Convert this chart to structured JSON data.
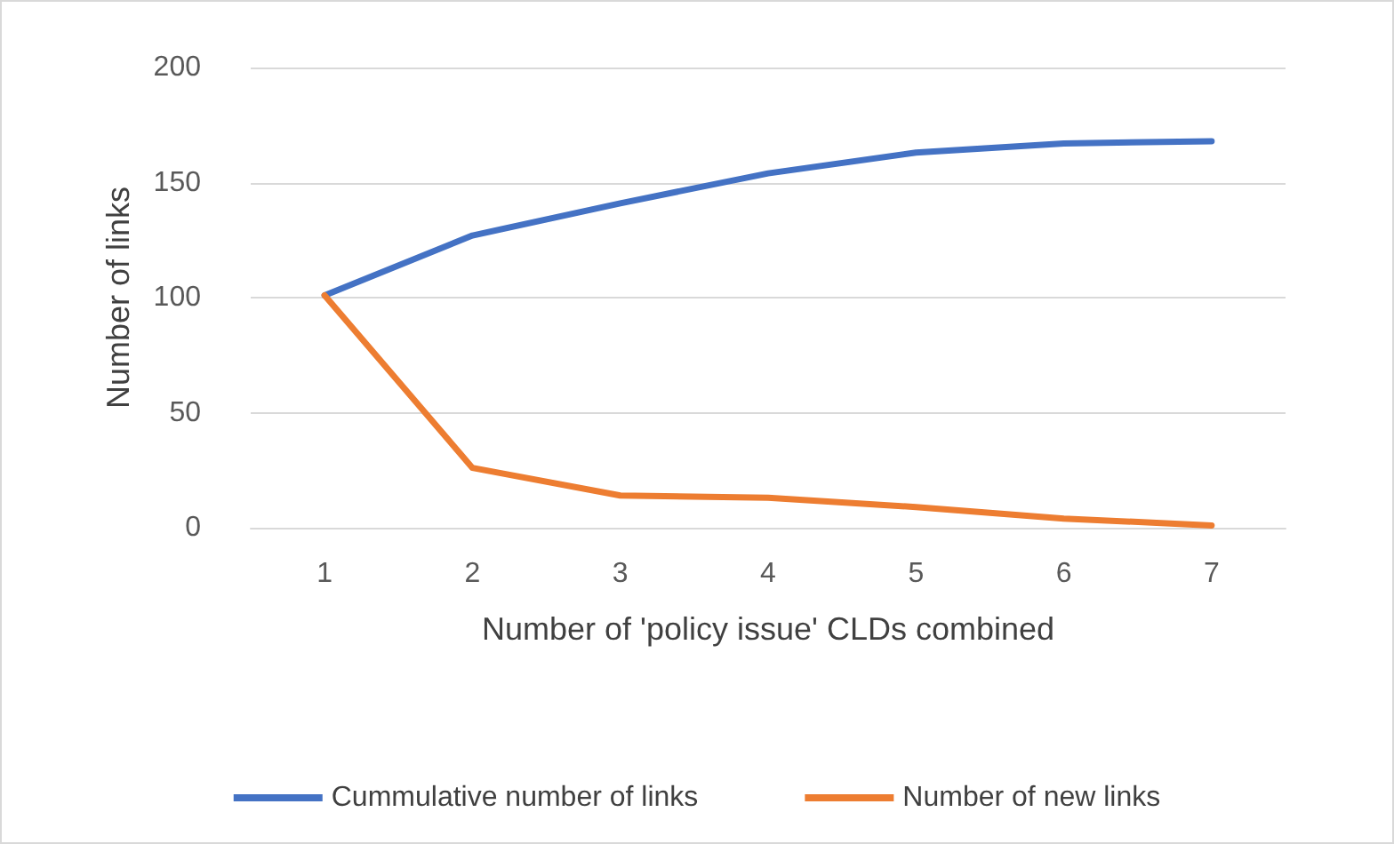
{
  "chart_data": {
    "type": "line",
    "xlabel": "Number of 'policy issue' CLDs combined",
    "ylabel": "Number of links",
    "categories": [
      "1",
      "2",
      "3",
      "4",
      "5",
      "6",
      "7"
    ],
    "series": [
      {
        "name": "Cummulative number of links",
        "color": "#4472c4",
        "values": [
          101,
          127,
          141,
          154,
          163,
          167,
          168
        ]
      },
      {
        "name": "Number of new links",
        "color": "#ed7d31",
        "values": [
          101,
          26,
          14,
          13,
          9,
          4,
          1
        ]
      }
    ],
    "ylim": [
      0,
      200
    ],
    "yticks": [
      0,
      50,
      100,
      150,
      200
    ],
    "grid": "y",
    "legend": "bottom",
    "marker": "none",
    "line_style": "solid"
  }
}
